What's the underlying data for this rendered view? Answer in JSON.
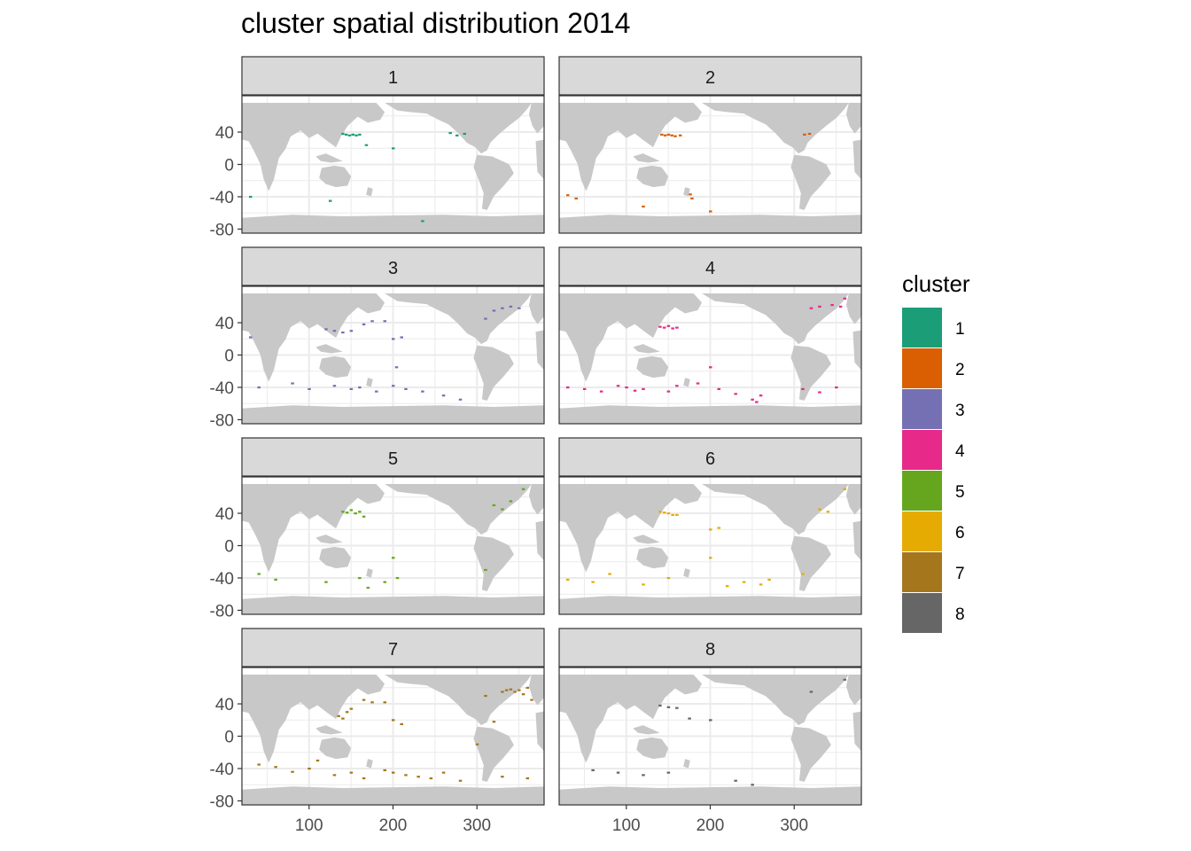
{
  "title": "cluster spatial distribution 2014",
  "chart_data": {
    "type": "scatter",
    "title": "cluster spatial distribution 2014",
    "facet_by": "cluster",
    "panels": [
      "1",
      "2",
      "3",
      "4",
      "5",
      "6",
      "7",
      "8"
    ],
    "xlabel": "",
    "ylabel": "",
    "xlim": [
      20,
      380
    ],
    "ylim": [
      -85,
      85
    ],
    "x_ticks": [
      100,
      200,
      300
    ],
    "y_ticks": [
      40,
      0,
      -40,
      -80
    ],
    "x_tick_labels": [
      "100",
      "200",
      "300"
    ],
    "y_tick_labels": [
      "40",
      "0",
      "-40",
      "-80"
    ],
    "land_color": "#c8c8c8",
    "grid": true,
    "legend": {
      "title": "cluster",
      "position": "right",
      "entries": [
        {
          "label": "1",
          "color": "#1b9e77"
        },
        {
          "label": "2",
          "color": "#d95f02"
        },
        {
          "label": "3",
          "color": "#7570b3"
        },
        {
          "label": "4",
          "color": "#e7298a"
        },
        {
          "label": "5",
          "color": "#66a61e"
        },
        {
          "label": "6",
          "color": "#e6ab02"
        },
        {
          "label": "7",
          "color": "#a6761d"
        },
        {
          "label": "8",
          "color": "#666666"
        }
      ]
    },
    "series": [
      {
        "cluster": "1",
        "points": [
          [
            140,
            38
          ],
          [
            144,
            37
          ],
          [
            148,
            36
          ],
          [
            152,
            37
          ],
          [
            156,
            36
          ],
          [
            160,
            37
          ],
          [
            168,
            24
          ],
          [
            268,
            39
          ],
          [
            276,
            36
          ],
          [
            285,
            38
          ],
          [
            235,
            -70
          ],
          [
            30,
            -40
          ],
          [
            125,
            -45
          ],
          [
            200,
            20
          ]
        ]
      },
      {
        "cluster": "2",
        "points": [
          [
            142,
            37
          ],
          [
            146,
            36
          ],
          [
            150,
            37
          ],
          [
            154,
            36
          ],
          [
            158,
            35
          ],
          [
            164,
            36
          ],
          [
            176,
            -37
          ],
          [
            178,
            -42
          ],
          [
            312,
            37
          ],
          [
            318,
            38
          ],
          [
            30,
            -38
          ],
          [
            40,
            -42
          ],
          [
            120,
            -52
          ],
          [
            200,
            -58
          ]
        ]
      },
      {
        "cluster": "3",
        "points": [
          [
            120,
            32
          ],
          [
            130,
            30
          ],
          [
            140,
            28
          ],
          [
            150,
            30
          ],
          [
            165,
            38
          ],
          [
            175,
            42
          ],
          [
            190,
            42
          ],
          [
            200,
            20
          ],
          [
            210,
            22
          ],
          [
            320,
            55
          ],
          [
            330,
            58
          ],
          [
            340,
            60
          ],
          [
            350,
            58
          ],
          [
            310,
            45
          ],
          [
            80,
            -35
          ],
          [
            100,
            -42
          ],
          [
            130,
            -38
          ],
          [
            150,
            -42
          ],
          [
            160,
            -40
          ],
          [
            180,
            -45
          ],
          [
            200,
            -38
          ],
          [
            215,
            -42
          ],
          [
            235,
            -45
          ],
          [
            260,
            -50
          ],
          [
            280,
            -55
          ],
          [
            204,
            -15
          ],
          [
            40,
            -40
          ],
          [
            30,
            22
          ]
        ]
      },
      {
        "cluster": "4",
        "points": [
          [
            140,
            35
          ],
          [
            145,
            34
          ],
          [
            150,
            36
          ],
          [
            155,
            33
          ],
          [
            160,
            34
          ],
          [
            30,
            -40
          ],
          [
            50,
            -42
          ],
          [
            70,
            -45
          ],
          [
            90,
            -38
          ],
          [
            100,
            -40
          ],
          [
            110,
            -44
          ],
          [
            120,
            -42
          ],
          [
            150,
            -45
          ],
          [
            160,
            -38
          ],
          [
            185,
            -35
          ],
          [
            200,
            -15
          ],
          [
            210,
            -42
          ],
          [
            230,
            -48
          ],
          [
            250,
            -55
          ],
          [
            255,
            -58
          ],
          [
            260,
            -50
          ],
          [
            310,
            -42
          ],
          [
            330,
            -46
          ],
          [
            350,
            -40
          ],
          [
            320,
            58
          ],
          [
            330,
            60
          ],
          [
            345,
            62
          ],
          [
            355,
            60
          ],
          [
            360,
            70
          ]
        ]
      },
      {
        "cluster": "5",
        "points": [
          [
            140,
            42
          ],
          [
            145,
            41
          ],
          [
            150,
            44
          ],
          [
            155,
            40
          ],
          [
            160,
            42
          ],
          [
            165,
            36
          ],
          [
            40,
            -35
          ],
          [
            60,
            -42
          ],
          [
            120,
            -45
          ],
          [
            160,
            -40
          ],
          [
            170,
            -52
          ],
          [
            200,
            -15
          ],
          [
            330,
            45
          ],
          [
            320,
            50
          ],
          [
            340,
            55
          ],
          [
            355,
            70
          ],
          [
            310,
            -30
          ],
          [
            205,
            -40
          ],
          [
            190,
            -45
          ]
        ]
      },
      {
        "cluster": "6",
        "points": [
          [
            140,
            42
          ],
          [
            145,
            41
          ],
          [
            150,
            40
          ],
          [
            155,
            38
          ],
          [
            160,
            38
          ],
          [
            200,
            20
          ],
          [
            210,
            22
          ],
          [
            330,
            45
          ],
          [
            340,
            42
          ],
          [
            360,
            70
          ],
          [
            30,
            -42
          ],
          [
            60,
            -45
          ],
          [
            80,
            -35
          ],
          [
            120,
            -48
          ],
          [
            150,
            -40
          ],
          [
            200,
            -15
          ],
          [
            220,
            -50
          ],
          [
            240,
            -45
          ],
          [
            260,
            -48
          ],
          [
            270,
            -42
          ],
          [
            310,
            -35
          ]
        ]
      },
      {
        "cluster": "7",
        "points": [
          [
            135,
            25
          ],
          [
            140,
            22
          ],
          [
            145,
            30
          ],
          [
            150,
            34
          ],
          [
            165,
            45
          ],
          [
            175,
            42
          ],
          [
            190,
            42
          ],
          [
            200,
            20
          ],
          [
            210,
            15
          ],
          [
            330,
            55
          ],
          [
            335,
            57
          ],
          [
            340,
            58
          ],
          [
            345,
            55
          ],
          [
            350,
            57
          ],
          [
            355,
            52
          ],
          [
            360,
            60
          ],
          [
            365,
            45
          ],
          [
            310,
            50
          ],
          [
            320,
            18
          ],
          [
            300,
            -10
          ],
          [
            40,
            -35
          ],
          [
            60,
            -38
          ],
          [
            80,
            -44
          ],
          [
            100,
            -40
          ],
          [
            110,
            -30
          ],
          [
            130,
            -48
          ],
          [
            150,
            -45
          ],
          [
            165,
            -52
          ],
          [
            190,
            -42
          ],
          [
            200,
            -45
          ],
          [
            215,
            -48
          ],
          [
            230,
            -50
          ],
          [
            245,
            -52
          ],
          [
            260,
            -45
          ],
          [
            280,
            -55
          ],
          [
            330,
            -50
          ],
          [
            360,
            -52
          ]
        ]
      },
      {
        "cluster": "8",
        "points": [
          [
            140,
            38
          ],
          [
            150,
            36
          ],
          [
            160,
            35
          ],
          [
            175,
            22
          ],
          [
            200,
            20
          ],
          [
            60,
            -42
          ],
          [
            90,
            -45
          ],
          [
            120,
            -48
          ],
          [
            150,
            -45
          ],
          [
            230,
            -55
          ],
          [
            250,
            -60
          ],
          [
            320,
            55
          ],
          [
            360,
            70
          ]
        ]
      }
    ]
  }
}
